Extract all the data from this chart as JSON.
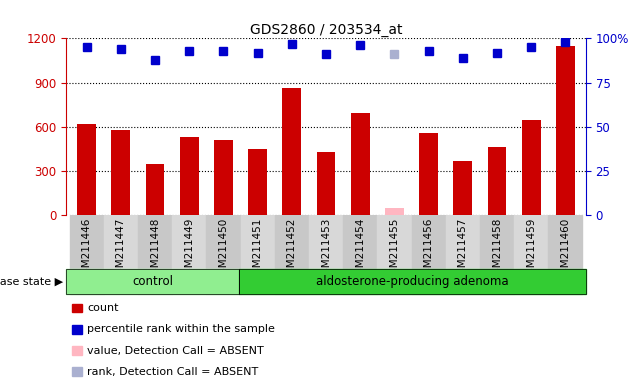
{
  "title": "GDS2860 / 203534_at",
  "samples": [
    "GSM211446",
    "GSM211447",
    "GSM211448",
    "GSM211449",
    "GSM211450",
    "GSM211451",
    "GSM211452",
    "GSM211453",
    "GSM211454",
    "GSM211455",
    "GSM211456",
    "GSM211457",
    "GSM211458",
    "GSM211459",
    "GSM211460"
  ],
  "counts": [
    620,
    575,
    350,
    530,
    510,
    450,
    860,
    430,
    690,
    50,
    560,
    370,
    460,
    645,
    1150
  ],
  "percentile_ranks": [
    95,
    94,
    88,
    93,
    93,
    92,
    97,
    91,
    96,
    91,
    93,
    89,
    92,
    95,
    98
  ],
  "absent_value_idx": 9,
  "absent_value": 50,
  "absent_rank_idx": 9,
  "absent_rank_val": 91,
  "control_count": 5,
  "ylim_left": [
    0,
    1200
  ],
  "ylim_right": [
    0,
    100
  ],
  "yticks_left": [
    0,
    300,
    600,
    900,
    1200
  ],
  "yticks_right": [
    0,
    25,
    50,
    75,
    100
  ],
  "ytick_right_labels": [
    "0",
    "25",
    "50",
    "75",
    "100%"
  ],
  "bar_color": "#cc0000",
  "dot_color": "#0000cc",
  "absent_value_color": "#ffb6c1",
  "absent_rank_color": "#aab0d0",
  "control_bg": "#90ee90",
  "adenoma_bg": "#33cc33",
  "tick_bg_odd": "#c8c8c8",
  "tick_bg_even": "#d8d8d8",
  "group_label_control": "control",
  "group_label_adenoma": "aldosterone-producing adenoma",
  "disease_state_label": "disease state",
  "legend_items": [
    {
      "label": "count",
      "color": "#cc0000"
    },
    {
      "label": "percentile rank within the sample",
      "color": "#0000cc"
    },
    {
      "label": "value, Detection Call = ABSENT",
      "color": "#ffb6c1"
    },
    {
      "label": "rank, Detection Call = ABSENT",
      "color": "#aab0d0"
    }
  ]
}
